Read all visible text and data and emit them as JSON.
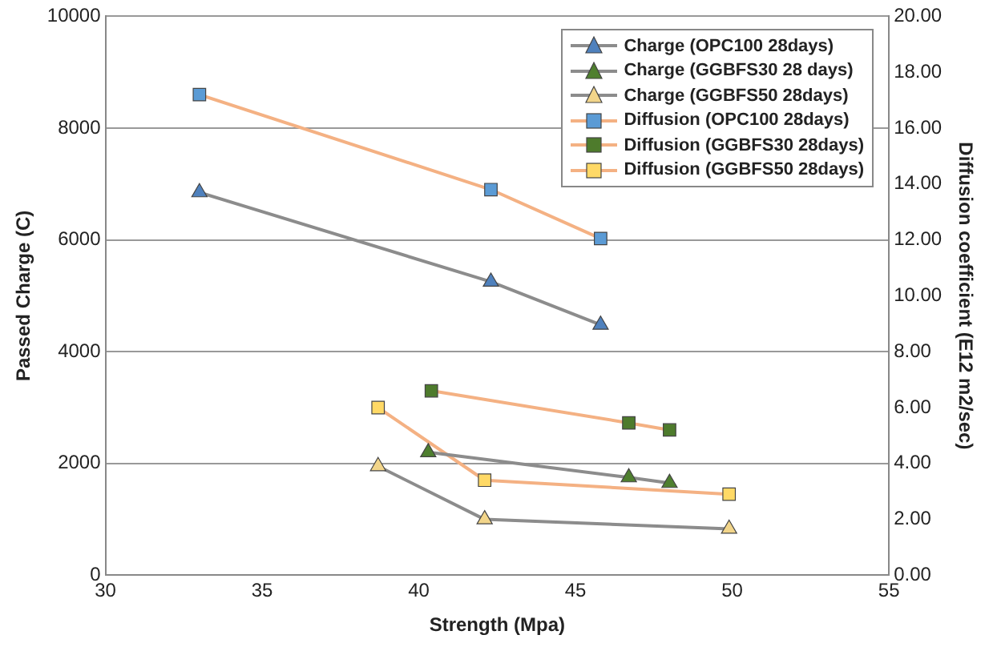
{
  "chart_data": {
    "type": "line",
    "xlabel": "Strength (Mpa)",
    "ylabel": "Passed Charge (C)",
    "y2label": "Diffusion coefficient (E12 m2/sec)",
    "xlim": [
      30,
      55
    ],
    "xticks": [
      30,
      35,
      40,
      45,
      50,
      55
    ],
    "ylim": [
      0,
      10000
    ],
    "yticks": [
      0,
      2000,
      4000,
      6000,
      8000,
      10000
    ],
    "y2lim": [
      0,
      20
    ],
    "y2ticks": [
      {
        "value": 0,
        "label": "0.00"
      },
      {
        "value": 2,
        "label": "2.00"
      },
      {
        "value": 4,
        "label": "4.00"
      },
      {
        "value": 6,
        "label": "6.00"
      },
      {
        "value": 8,
        "label": "8.00"
      },
      {
        "value": 10,
        "label": "10.00"
      },
      {
        "value": 12,
        "label": "12.00"
      },
      {
        "value": 14,
        "label": "14.00"
      },
      {
        "value": 16,
        "label": "16.00"
      },
      {
        "value": 18,
        "label": "18.00"
      },
      {
        "value": 20,
        "label": "20.00"
      }
    ],
    "grid": "y",
    "legend": "top right",
    "line_style": "solid",
    "series": [
      {
        "name": "Charge (OPC100 28days)",
        "color": "#4f81bd",
        "marker": "triangle",
        "x": [
          33,
          42.3,
          45.8
        ],
        "values": [
          6850,
          5250,
          4480
        ]
      },
      {
        "name": "Charge (GGBFS30 28 days)",
        "color": "#4f7f2f",
        "marker": "triangle",
        "x": [
          40.3,
          46.7,
          48
        ],
        "values": [
          2200,
          1750,
          1650
        ]
      },
      {
        "name": "Charge (GGBFS50 28days)",
        "color": "#f2d58a",
        "marker": "triangle",
        "x": [
          38.7,
          42.1,
          49.9
        ],
        "values": [
          1950,
          1000,
          830
        ]
      },
      {
        "name": "Diffusion (OPC100 28days)",
        "color": "#5b9bd5",
        "marker": "square",
        "axis": "y2",
        "x": [
          33,
          42.3,
          45.8
        ],
        "values": [
          17.2,
          13.8,
          12.05
        ]
      },
      {
        "name": "Diffusion (GGBFS30 28days)",
        "color": "#4e7b2c",
        "marker": "square",
        "axis": "y2",
        "x": [
          40.4,
          46.7,
          48
        ],
        "values": [
          6.6,
          5.45,
          5.2
        ]
      },
      {
        "name": "Diffusion (GGBFS50 28days)",
        "color": "#ffd966",
        "marker": "square",
        "axis": "y2",
        "x": [
          38.7,
          42.1,
          49.9
        ],
        "values": [
          6.0,
          3.4,
          2.9
        ]
      }
    ]
  }
}
